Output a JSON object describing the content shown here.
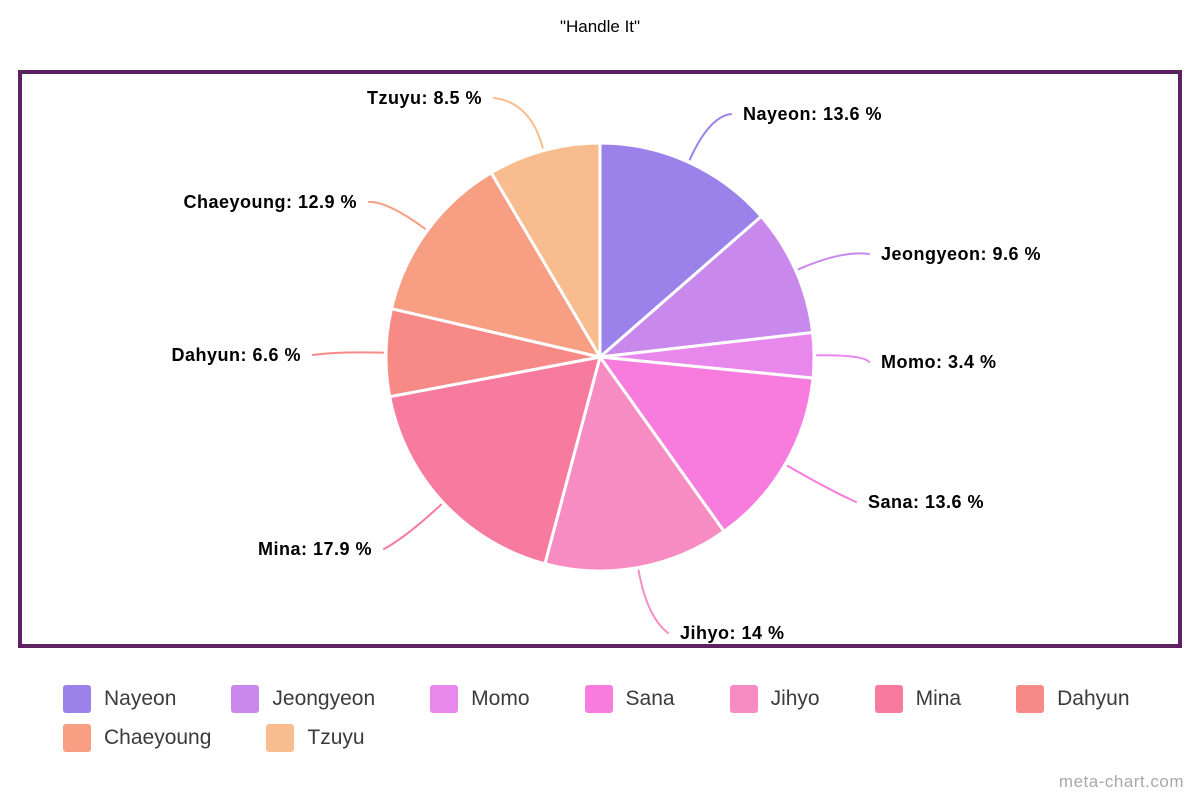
{
  "title": "\"Handle It\"",
  "watermark": "meta-chart.com",
  "frame": {
    "border_color": "#5d2361"
  },
  "chart_data": {
    "type": "pie",
    "title": "\"Handle It\"",
    "unit": "%",
    "start_angle_deg": 0,
    "direction": "clockwise",
    "legend_position": "bottom",
    "label_format": "{name}: {value} %",
    "categories": [
      "Nayeon",
      "Jeongyeon",
      "Momo",
      "Sana",
      "Jihyo",
      "Mina",
      "Dahyun",
      "Chaeyoung",
      "Tzuyu"
    ],
    "values": [
      13.6,
      9.6,
      3.4,
      13.6,
      14,
      17.9,
      6.6,
      12.9,
      8.5
    ],
    "colors": [
      "#9b82ea",
      "#c989ec",
      "#e887ec",
      "#f77cdd",
      "#f78cc3",
      "#f77b9e",
      "#f78a87",
      "#f89e82",
      "#f9bc8e"
    ],
    "slice_separator_color": "#ffffff",
    "label_text_color": "#000000",
    "legend_text_color": "#3b3b3b"
  }
}
